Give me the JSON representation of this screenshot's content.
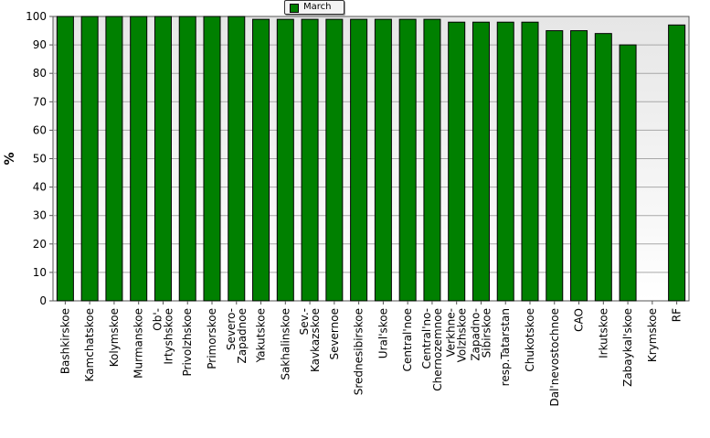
{
  "chart_data": {
    "type": "bar",
    "title": "",
    "xlabel": "",
    "ylabel": "%",
    "ylim": [
      0,
      100
    ],
    "yticks": [
      0,
      10,
      20,
      30,
      40,
      50,
      60,
      70,
      80,
      90,
      100
    ],
    "grid": true,
    "legend_position": "top-center",
    "series": [
      {
        "name": "March",
        "color": "#008000",
        "values": [
          100,
          100,
          100,
          100,
          100,
          100,
          100,
          100,
          99,
          99,
          99,
          99,
          99,
          99,
          99,
          99,
          98,
          98,
          98,
          98,
          95,
          95,
          94,
          90,
          null,
          97
        ]
      }
    ],
    "categories": [
      [
        "Bashkirskoe"
      ],
      [
        "Kamchatskoe"
      ],
      [
        "Kolymskoe"
      ],
      [
        "Murmanskoe"
      ],
      [
        "Ob'-",
        "Irtyshskoe"
      ],
      [
        "Privolzhskoe"
      ],
      [
        "Primorskoe"
      ],
      [
        "Severo-",
        "Zapadnoe"
      ],
      [
        "Yakutskoe"
      ],
      [
        "Sakhalinskoe"
      ],
      [
        "Sev.-",
        "Kavkazskoe"
      ],
      [
        "Severnoe"
      ],
      [
        "Srednesibirskoe"
      ],
      [
        "Ural'skoe"
      ],
      [
        "Central'noe"
      ],
      [
        "Central'no-",
        "Chernozemnoe"
      ],
      [
        "Verkhne-",
        "Volzhskoe"
      ],
      [
        "Zapadno-",
        "Sibirskoe"
      ],
      [
        "resp.Tatarstan"
      ],
      [
        "Chukotskoe"
      ],
      [
        "Dal'nevostochnoe"
      ],
      [
        "CAO"
      ],
      [
        "Irkutskoe"
      ],
      [
        "Zabaykal'skoe"
      ],
      [
        "Krymskoe"
      ],
      [
        "RF"
      ]
    ]
  }
}
